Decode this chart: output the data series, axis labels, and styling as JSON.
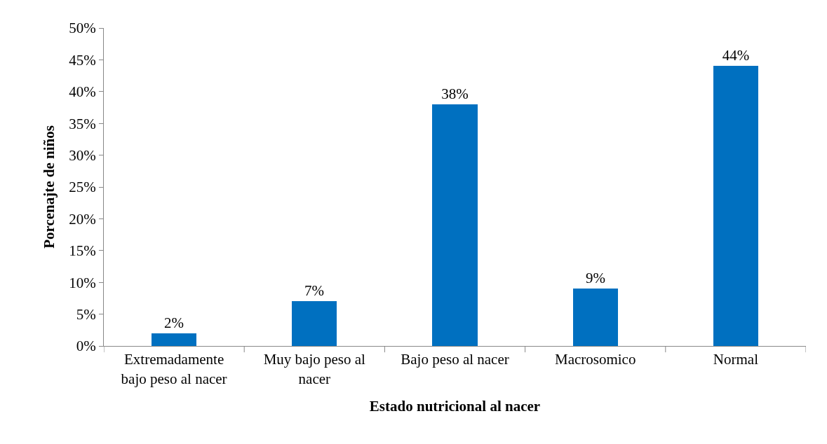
{
  "chart_data": {
    "type": "bar",
    "xlabel": "Estado nutricional al nacer",
    "ylabel": "Porcenajte de niños",
    "categories": [
      "Extremadamente bajo peso al nacer",
      "Muy bajo peso al nacer",
      "Bajo peso al nacer",
      "Macrosomico",
      "Normal"
    ],
    "values": [
      2,
      7,
      38,
      9,
      44
    ],
    "value_labels": [
      "2%",
      "7%",
      "38%",
      "9%",
      "44%"
    ],
    "color": "#0070c0",
    "ylim": [
      0,
      50
    ],
    "yticks": [
      {
        "value": 0,
        "label": "0%"
      },
      {
        "value": 5,
        "label": "5%"
      },
      {
        "value": 10,
        "label": "10%"
      },
      {
        "value": 15,
        "label": "15%"
      },
      {
        "value": 20,
        "label": "20%"
      },
      {
        "value": 25,
        "label": "25%"
      },
      {
        "value": 30,
        "label": "30%"
      },
      {
        "value": 35,
        "label": "35%"
      },
      {
        "value": 40,
        "label": "40%"
      },
      {
        "value": 45,
        "label": "45%"
      },
      {
        "value": 50,
        "label": "50%"
      }
    ],
    "grid": false
  }
}
